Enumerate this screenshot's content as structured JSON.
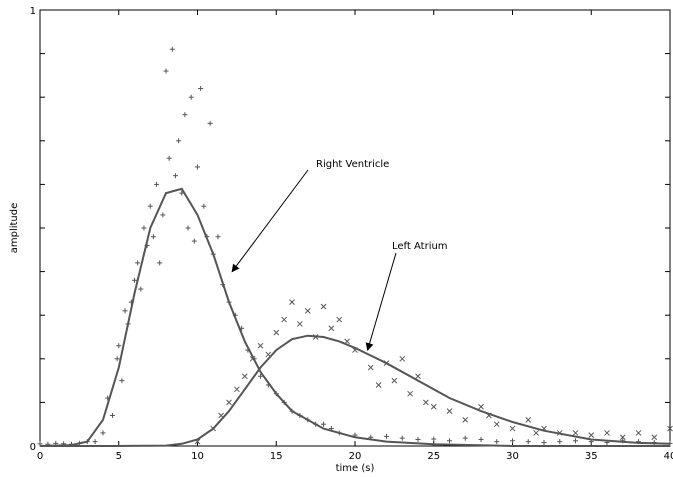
{
  "chart_data": {
    "type": "scatter",
    "xlabel": "time (s)",
    "ylabel": "amplitude",
    "xlim": [
      0,
      40
    ],
    "ylim": [
      0,
      1
    ],
    "x_ticks": [
      "0",
      "5",
      "10",
      "15",
      "20",
      "25",
      "30",
      "35",
      "40"
    ],
    "y_ticks": [
      "0",
      "1"
    ],
    "grid": false,
    "legend": "none",
    "colors": {
      "curve": "#555555",
      "marker": "#555555",
      "axis": "#000000"
    },
    "series": [
      {
        "name": "Right Ventricle",
        "kind": "fitted-curve",
        "x": [
          0,
          2,
          3,
          4,
          5,
          6,
          7,
          8,
          9,
          10,
          11,
          12,
          13,
          14,
          15,
          16,
          18,
          20,
          22,
          25,
          30,
          35,
          40
        ],
        "values": [
          0.0,
          0.002,
          0.01,
          0.06,
          0.18,
          0.35,
          0.5,
          0.58,
          0.59,
          0.53,
          0.44,
          0.33,
          0.24,
          0.17,
          0.12,
          0.08,
          0.04,
          0.02,
          0.01,
          0.004,
          0.0,
          0.0,
          0.0
        ]
      },
      {
        "name": "Left Atrium",
        "kind": "fitted-curve",
        "x": [
          0,
          5,
          8,
          9,
          10,
          11,
          12,
          13,
          14,
          15,
          16,
          17,
          18,
          19,
          20,
          22,
          24,
          26,
          28,
          30,
          32,
          35,
          38,
          40
        ],
        "values": [
          0.0,
          0.0,
          0.001,
          0.005,
          0.015,
          0.04,
          0.08,
          0.13,
          0.18,
          0.22,
          0.245,
          0.253,
          0.25,
          0.24,
          0.225,
          0.19,
          0.15,
          0.11,
          0.08,
          0.055,
          0.035,
          0.015,
          0.007,
          0.005
        ]
      },
      {
        "name": "Right Ventricle",
        "kind": "samples",
        "marker": "+",
        "x": [
          0,
          0.5,
          1,
          1.5,
          2,
          2.5,
          3,
          3.5,
          4,
          4.3,
          4.6,
          4.9,
          5,
          5.2,
          5.4,
          5.6,
          5.8,
          6,
          6.2,
          6.4,
          6.6,
          6.8,
          7,
          7.2,
          7.4,
          7.6,
          7.8,
          8,
          8.2,
          8.4,
          8.6,
          8.8,
          9,
          9.2,
          9.4,
          9.6,
          9.8,
          10,
          10.2,
          10.4,
          10.6,
          10.8,
          11,
          11.3,
          11.6,
          12,
          12.4,
          12.8,
          13.2,
          13.6,
          14,
          14.5,
          15,
          15.5,
          16,
          16.5,
          17,
          17.5,
          18,
          18.5,
          19,
          20,
          21,
          22,
          23,
          24,
          25,
          26,
          27,
          28,
          29,
          30,
          31,
          32,
          33,
          34,
          35,
          36,
          37,
          38,
          39,
          40
        ],
        "values": [
          0.005,
          0.004,
          0.006,
          0.005,
          0.004,
          0.006,
          0.01,
          0.01,
          0.03,
          0.11,
          0.07,
          0.2,
          0.23,
          0.15,
          0.31,
          0.28,
          0.33,
          0.38,
          0.42,
          0.36,
          0.5,
          0.46,
          0.55,
          0.48,
          0.6,
          0.42,
          0.53,
          0.86,
          0.66,
          0.91,
          0.62,
          0.7,
          0.58,
          0.76,
          0.5,
          0.8,
          0.47,
          0.64,
          0.82,
          0.55,
          0.48,
          0.74,
          0.44,
          0.48,
          0.37,
          0.33,
          0.3,
          0.27,
          0.22,
          0.2,
          0.16,
          0.14,
          0.12,
          0.1,
          0.08,
          0.07,
          0.06,
          0.05,
          0.05,
          0.04,
          0.03,
          0.025,
          0.02,
          0.022,
          0.018,
          0.015,
          0.016,
          0.012,
          0.018,
          0.015,
          0.01,
          0.012,
          0.01,
          0.008,
          0.01,
          0.012,
          0.01,
          0.008,
          0.012,
          0.01,
          0.008,
          0.006
        ]
      },
      {
        "name": "Left Atrium",
        "kind": "samples",
        "marker": "x",
        "x": [
          10,
          11,
          11.5,
          12,
          12.5,
          13,
          13.5,
          14,
          14.5,
          15,
          15.5,
          16,
          16.5,
          17,
          17.5,
          18,
          18.5,
          19,
          19.5,
          20,
          21,
          21.5,
          22,
          22.5,
          23,
          23.5,
          24,
          24.5,
          25,
          26,
          27,
          28,
          28.5,
          29,
          30,
          31,
          31.5,
          32,
          33,
          34,
          35,
          36,
          37,
          38,
          39,
          40
        ],
        "values": [
          0.01,
          0.04,
          0.07,
          0.1,
          0.13,
          0.16,
          0.2,
          0.23,
          0.21,
          0.26,
          0.29,
          0.33,
          0.28,
          0.31,
          0.25,
          0.32,
          0.27,
          0.29,
          0.24,
          0.22,
          0.18,
          0.14,
          0.19,
          0.15,
          0.2,
          0.12,
          0.16,
          0.1,
          0.09,
          0.08,
          0.06,
          0.09,
          0.07,
          0.05,
          0.04,
          0.06,
          0.03,
          0.04,
          0.03,
          0.03,
          0.025,
          0.03,
          0.02,
          0.03,
          0.02,
          0.04
        ]
      }
    ],
    "annotations": [
      {
        "text": "Right Ventricle",
        "points_to": {
          "x": 12.2,
          "y": 0.4
        }
      },
      {
        "text": "Left Atrium",
        "points_to": {
          "x": 20.8,
          "y": 0.22
        }
      }
    ]
  }
}
